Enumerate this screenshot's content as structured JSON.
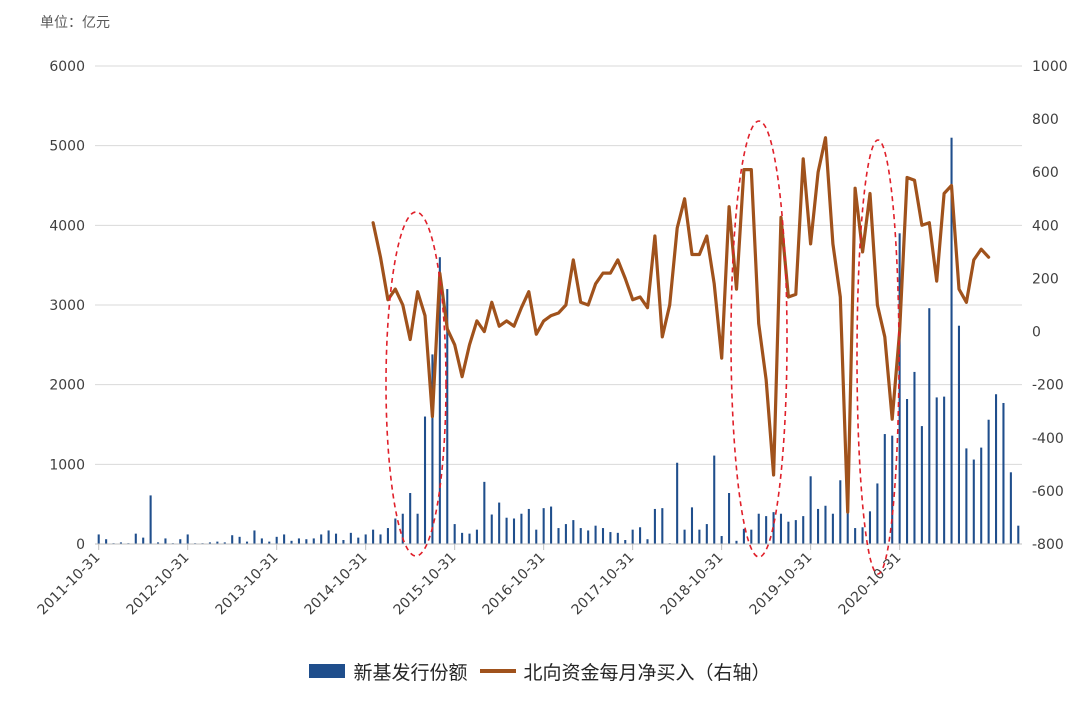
{
  "unit_label": "单位：亿元",
  "legend": {
    "bar_label": "新基发行份额",
    "line_label": "北向资金每月净买入（右轴）"
  },
  "colors": {
    "bar": "#1f4e8c",
    "line": "#a0521c",
    "grid": "#d9d9d9",
    "ellipse": "#e0202a"
  },
  "chart_data": {
    "type": "bar+line",
    "x_tick_labels": [
      "2011-10-31",
      "2012-10-31",
      "2013-10-31",
      "2014-10-31",
      "2015-10-31",
      "2016-10-31",
      "2017-10-31",
      "2018-10-31",
      "2019-10-31",
      "2020-10-31"
    ],
    "y_left": {
      "range": [
        0,
        6000
      ],
      "ticks": [
        0,
        1000,
        2000,
        3000,
        4000,
        5000,
        6000
      ]
    },
    "y_right": {
      "range": [
        -800,
        1000
      ],
      "ticks": [
        -800,
        -600,
        -400,
        -200,
        0,
        200,
        400,
        600,
        800,
        1000
      ]
    },
    "grid": true,
    "legend_position": "bottom",
    "series": [
      {
        "name": "新基发行份额",
        "axis": "left",
        "type": "bar",
        "start_month": "2011-10-31",
        "values": [
          120,
          60,
          10,
          20,
          10,
          130,
          80,
          610,
          20,
          70,
          10,
          60,
          120,
          10,
          10,
          20,
          30,
          20,
          110,
          90,
          30,
          170,
          70,
          30,
          90,
          120,
          40,
          70,
          60,
          70,
          120,
          170,
          130,
          50,
          140,
          80,
          120,
          180,
          120,
          200,
          320,
          380,
          640,
          380,
          1600,
          2380,
          3600,
          3200,
          250,
          140,
          130,
          180,
          780,
          370,
          520,
          330,
          320,
          380,
          440,
          180,
          450,
          470,
          200,
          250,
          300,
          200,
          170,
          230,
          200,
          150,
          140,
          50,
          180,
          210,
          60,
          440,
          450,
          10,
          1020,
          180,
          460,
          180,
          250,
          1110,
          100,
          640,
          40,
          190,
          180,
          380,
          350,
          400,
          380,
          280,
          300,
          350,
          850,
          440,
          480,
          380,
          800,
          780,
          200,
          210,
          410,
          760,
          1380,
          1360,
          3900,
          1820,
          2160,
          1480,
          2960,
          1840,
          1850,
          5100,
          2740,
          1200,
          1060,
          1210,
          1560,
          1880,
          1770,
          900,
          230
        ]
      },
      {
        "name": "北向资金每月净买入（右轴）",
        "axis": "right",
        "type": "line",
        "start_month": "2014-11-30",
        "values": [
          410,
          280,
          120,
          160,
          100,
          -30,
          150,
          60,
          -320,
          220,
          10,
          -50,
          -170,
          -50,
          40,
          0,
          110,
          20,
          40,
          20,
          90,
          150,
          -10,
          40,
          60,
          70,
          100,
          270,
          110,
          100,
          180,
          220,
          220,
          270,
          200,
          120,
          130,
          90,
          360,
          -20,
          100,
          390,
          500,
          290,
          290,
          360,
          180,
          -100,
          470,
          160,
          610,
          610,
          30,
          -180,
          -540,
          430,
          130,
          140,
          650,
          330,
          600,
          730,
          330,
          130,
          -680,
          540,
          300,
          520,
          100,
          -20,
          -330,
          0,
          580,
          570,
          400,
          410,
          190,
          520,
          550,
          160,
          110,
          270,
          310,
          280
        ]
      }
    ],
    "annotations": "four dashed red ellipses highlighting drawdown periods"
  }
}
